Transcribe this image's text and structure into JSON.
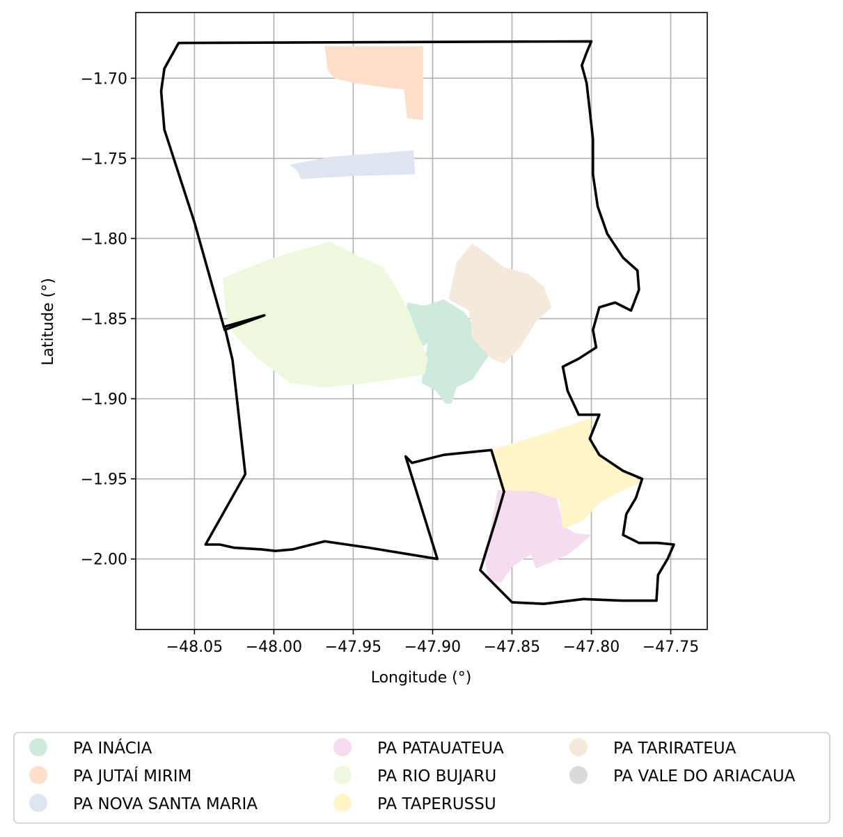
{
  "chart_data": {
    "type": "map",
    "xlabel": "Longitude (°)",
    "ylabel": "Latitude (°)",
    "xlim": [
      -48.087,
      -47.727
    ],
    "ylim": [
      -2.044,
      -1.659
    ],
    "x_ticks": [
      -48.05,
      -48.0,
      -47.95,
      -47.9,
      -47.85,
      -47.8,
      -47.75
    ],
    "x_tick_labels": [
      "−48.05",
      "−48.00",
      "−47.95",
      "−47.90",
      "−47.85",
      "−47.80",
      "−47.75"
    ],
    "y_ticks": [
      -1.7,
      -1.75,
      -1.8,
      -1.85,
      -1.9,
      -1.95,
      -2.0
    ],
    "y_tick_labels": [
      "−1.70",
      "−1.75",
      "−1.80",
      "−1.85",
      "−1.90",
      "−1.95",
      "−2.00"
    ],
    "grid": true,
    "legend_position": "bottom",
    "boundary": {
      "color": "#000000",
      "coords": [
        [
          -48.06,
          -1.678
        ],
        [
          -47.8,
          -1.677
        ],
        [
          -47.803,
          -1.684
        ],
        [
          -47.806,
          -1.692
        ],
        [
          -47.803,
          -1.703
        ],
        [
          -47.801,
          -1.72
        ],
        [
          -47.799,
          -1.738
        ],
        [
          -47.799,
          -1.76
        ],
        [
          -47.796,
          -1.78
        ],
        [
          -47.79,
          -1.797
        ],
        [
          -47.78,
          -1.812
        ],
        [
          -47.771,
          -1.82
        ],
        [
          -47.77,
          -1.832
        ],
        [
          -47.775,
          -1.845
        ],
        [
          -47.785,
          -1.84
        ],
        [
          -47.795,
          -1.843
        ],
        [
          -47.799,
          -1.857
        ],
        [
          -47.797,
          -1.868
        ],
        [
          -47.808,
          -1.875
        ],
        [
          -47.818,
          -1.88
        ],
        [
          -47.815,
          -1.895
        ],
        [
          -47.808,
          -1.91
        ],
        [
          -47.795,
          -1.91
        ],
        [
          -47.801,
          -1.925
        ],
        [
          -47.795,
          -1.935
        ],
        [
          -47.78,
          -1.945
        ],
        [
          -47.768,
          -1.95
        ],
        [
          -47.772,
          -1.962
        ],
        [
          -47.778,
          -1.972
        ],
        [
          -47.78,
          -1.985
        ],
        [
          -47.77,
          -1.99
        ],
        [
          -47.758,
          -1.99
        ],
        [
          -47.748,
          -1.991
        ],
        [
          -47.752,
          -2.0
        ],
        [
          -47.758,
          -2.01
        ],
        [
          -47.759,
          -2.026
        ],
        [
          -47.78,
          -2.026
        ],
        [
          -47.805,
          -2.025
        ],
        [
          -47.83,
          -2.028
        ],
        [
          -47.85,
          -2.027
        ],
        [
          -47.87,
          -2.007
        ],
        [
          -47.86,
          -1.975
        ],
        [
          -47.855,
          -1.958
        ],
        [
          -47.863,
          -1.932
        ],
        [
          -47.893,
          -1.935
        ],
        [
          -47.913,
          -1.94
        ],
        [
          -47.917,
          -1.936
        ],
        [
          -47.897,
          -2.0
        ],
        [
          -47.94,
          -1.993
        ],
        [
          -47.968,
          -1.989
        ],
        [
          -47.988,
          -1.994
        ],
        [
          -47.999,
          -1.995
        ],
        [
          -48.008,
          -1.994
        ],
        [
          -48.025,
          -1.993
        ],
        [
          -48.034,
          -1.991
        ],
        [
          -48.043,
          -1.991
        ],
        [
          -48.018,
          -1.947
        ],
        [
          -48.026,
          -1.876
        ],
        [
          -48.031,
          -1.855
        ],
        [
          -48.006,
          -1.848
        ],
        [
          -48.031,
          -1.857
        ],
        [
          -48.05,
          -1.79
        ],
        [
          -48.069,
          -1.732
        ],
        [
          -48.071,
          -1.708
        ],
        [
          -48.069,
          -1.694
        ]
      ]
    },
    "series": [
      {
        "name": "PA INÁCIA",
        "color": "#cdeadd",
        "coords": [
          [
            -47.916,
            -1.84
          ],
          [
            -47.905,
            -1.842
          ],
          [
            -47.893,
            -1.838
          ],
          [
            -47.88,
            -1.846
          ],
          [
            -47.872,
            -1.858
          ],
          [
            -47.864,
            -1.872
          ],
          [
            -47.875,
            -1.888
          ],
          [
            -47.885,
            -1.893
          ],
          [
            -47.888,
            -1.903
          ],
          [
            -47.892,
            -1.903
          ],
          [
            -47.898,
            -1.895
          ],
          [
            -47.907,
            -1.89
          ],
          [
            -47.903,
            -1.865
          ],
          [
            -47.912,
            -1.872
          ],
          [
            -47.918,
            -1.855
          ]
        ]
      },
      {
        "name": "PA JUTAÍ MIRIM",
        "color": "#fddfc9",
        "coords": [
          [
            -47.968,
            -1.68
          ],
          [
            -47.925,
            -1.68
          ],
          [
            -47.906,
            -1.68
          ],
          [
            -47.906,
            -1.726
          ],
          [
            -47.916,
            -1.725
          ],
          [
            -47.918,
            -1.707
          ],
          [
            -47.928,
            -1.706
          ],
          [
            -47.949,
            -1.703
          ],
          [
            -47.962,
            -1.7
          ],
          [
            -47.966,
            -1.695
          ]
        ]
      },
      {
        "name": "PA NOVA SANTA MARIA",
        "color": "#dfe4f1",
        "coords": [
          [
            -47.99,
            -1.754
          ],
          [
            -47.964,
            -1.749
          ],
          [
            -47.912,
            -1.745
          ],
          [
            -47.911,
            -1.76
          ],
          [
            -47.95,
            -1.761
          ],
          [
            -47.983,
            -1.763
          ],
          [
            -47.985,
            -1.758
          ]
        ]
      },
      {
        "name": "PA PATAUATEUA",
        "color": "#f5dcee",
        "coords": [
          [
            -47.859,
            -1.957
          ],
          [
            -47.823,
            -1.958
          ],
          [
            -47.817,
            -1.98
          ],
          [
            -47.81,
            -1.984
          ],
          [
            -47.8,
            -1.985
          ],
          [
            -47.808,
            -1.992
          ],
          [
            -47.816,
            -1.998
          ],
          [
            -47.835,
            -2.006
          ],
          [
            -47.838,
            -1.997
          ],
          [
            -47.85,
            -2.005
          ],
          [
            -47.857,
            -2.015
          ],
          [
            -47.865,
            -2.013
          ],
          [
            -47.867,
            -2.0
          ]
        ]
      },
      {
        "name": "PA RIO BUJARU",
        "color": "#eef8dc",
        "coords": [
          [
            -48.032,
            -1.825
          ],
          [
            -48.021,
            -1.82
          ],
          [
            -48.0,
            -1.812
          ],
          [
            -47.965,
            -1.802
          ],
          [
            -47.945,
            -1.812
          ],
          [
            -47.931,
            -1.818
          ],
          [
            -47.92,
            -1.836
          ],
          [
            -47.915,
            -1.845
          ],
          [
            -47.91,
            -1.858
          ],
          [
            -47.903,
            -1.875
          ],
          [
            -47.905,
            -1.885
          ],
          [
            -47.94,
            -1.89
          ],
          [
            -47.968,
            -1.893
          ],
          [
            -47.99,
            -1.89
          ],
          [
            -48.01,
            -1.875
          ],
          [
            -48.025,
            -1.86
          ],
          [
            -48.03,
            -1.848
          ],
          [
            -48.031,
            -1.837
          ]
        ]
      },
      {
        "name": "PA TAPERUSSU",
        "color": "#fff5c6",
        "coords": [
          [
            -47.863,
            -1.932
          ],
          [
            -47.83,
            -1.922
          ],
          [
            -47.8,
            -1.912
          ],
          [
            -47.801,
            -1.925
          ],
          [
            -47.795,
            -1.935
          ],
          [
            -47.78,
            -1.945
          ],
          [
            -47.768,
            -1.952
          ],
          [
            -47.782,
            -1.958
          ],
          [
            -47.795,
            -1.965
          ],
          [
            -47.805,
            -1.976
          ],
          [
            -47.818,
            -1.981
          ],
          [
            -47.82,
            -1.963
          ],
          [
            -47.835,
            -1.958
          ],
          [
            -47.857,
            -1.957
          ]
        ]
      },
      {
        "name": "PA TARIRATEUA",
        "color": "#f4e9da",
        "coords": [
          [
            -47.885,
            -1.815
          ],
          [
            -47.875,
            -1.803
          ],
          [
            -47.868,
            -1.808
          ],
          [
            -47.855,
            -1.818
          ],
          [
            -47.84,
            -1.822
          ],
          [
            -47.83,
            -1.83
          ],
          [
            -47.825,
            -1.843
          ],
          [
            -47.835,
            -1.852
          ],
          [
            -47.845,
            -1.868
          ],
          [
            -47.855,
            -1.878
          ],
          [
            -47.863,
            -1.875
          ],
          [
            -47.875,
            -1.862
          ],
          [
            -47.877,
            -1.845
          ],
          [
            -47.89,
            -1.838
          ]
        ]
      },
      {
        "name": "PA VALE DO ARIACAUA",
        "color": "#dadada",
        "coords": []
      }
    ]
  }
}
